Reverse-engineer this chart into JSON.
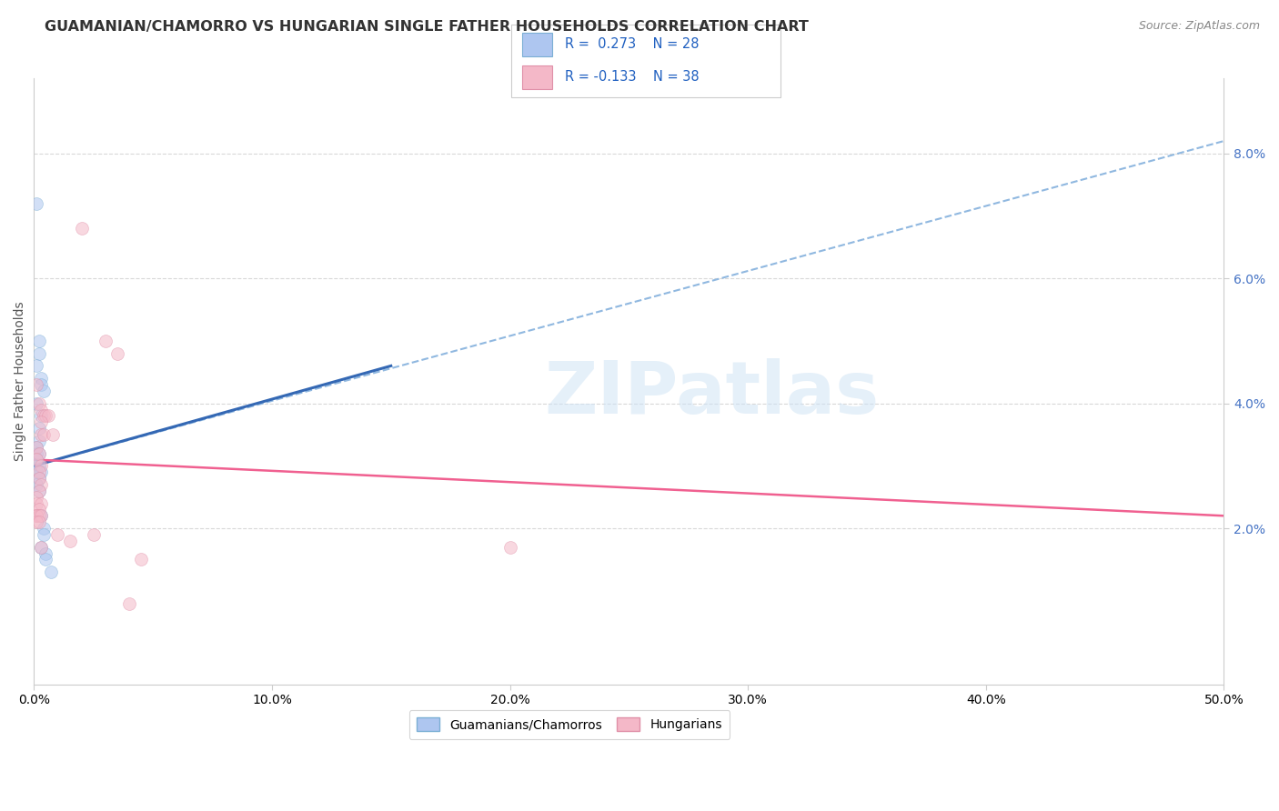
{
  "title": "GUAMANIAN/CHAMORRO VS HUNGARIAN SINGLE FATHER HOUSEHOLDS CORRELATION CHART",
  "source": "Source: ZipAtlas.com",
  "ylabel": "Single Father Households",
  "xlim": [
    0.0,
    0.5
  ],
  "ylim": [
    -0.005,
    0.092
  ],
  "ytick_vals": [
    0.02,
    0.04,
    0.06,
    0.08
  ],
  "xtick_vals": [
    0.0,
    0.1,
    0.2,
    0.3,
    0.4,
    0.5
  ],
  "blue_scatter": [
    [
      0.001,
      0.072
    ],
    [
      0.002,
      0.05
    ],
    [
      0.002,
      0.048
    ],
    [
      0.001,
      0.046
    ],
    [
      0.003,
      0.044
    ],
    [
      0.003,
      0.043
    ],
    [
      0.004,
      0.042
    ],
    [
      0.001,
      0.04
    ],
    [
      0.003,
      0.038
    ],
    [
      0.002,
      0.036
    ],
    [
      0.002,
      0.034
    ],
    [
      0.001,
      0.033
    ],
    [
      0.001,
      0.032
    ],
    [
      0.002,
      0.032
    ],
    [
      0.001,
      0.031
    ],
    [
      0.002,
      0.03
    ],
    [
      0.001,
      0.029
    ],
    [
      0.003,
      0.029
    ],
    [
      0.002,
      0.028
    ],
    [
      0.001,
      0.027
    ],
    [
      0.002,
      0.026
    ],
    [
      0.003,
      0.022
    ],
    [
      0.004,
      0.02
    ],
    [
      0.004,
      0.019
    ],
    [
      0.003,
      0.017
    ],
    [
      0.005,
      0.016
    ],
    [
      0.005,
      0.015
    ],
    [
      0.007,
      0.013
    ]
  ],
  "pink_scatter": [
    [
      0.02,
      0.068
    ],
    [
      0.03,
      0.05
    ],
    [
      0.035,
      0.048
    ],
    [
      0.001,
      0.043
    ],
    [
      0.002,
      0.04
    ],
    [
      0.003,
      0.039
    ],
    [
      0.004,
      0.038
    ],
    [
      0.005,
      0.038
    ],
    [
      0.006,
      0.038
    ],
    [
      0.003,
      0.037
    ],
    [
      0.003,
      0.035
    ],
    [
      0.004,
      0.035
    ],
    [
      0.008,
      0.035
    ],
    [
      0.001,
      0.033
    ],
    [
      0.002,
      0.032
    ],
    [
      0.001,
      0.031
    ],
    [
      0.003,
      0.03
    ],
    [
      0.002,
      0.029
    ],
    [
      0.002,
      0.028
    ],
    [
      0.003,
      0.027
    ],
    [
      0.002,
      0.026
    ],
    [
      0.001,
      0.025
    ],
    [
      0.001,
      0.024
    ],
    [
      0.003,
      0.024
    ],
    [
      0.002,
      0.023
    ],
    [
      0.001,
      0.022
    ],
    [
      0.001,
      0.022
    ],
    [
      0.002,
      0.022
    ],
    [
      0.003,
      0.022
    ],
    [
      0.001,
      0.021
    ],
    [
      0.002,
      0.021
    ],
    [
      0.01,
      0.019
    ],
    [
      0.025,
      0.019
    ],
    [
      0.015,
      0.018
    ],
    [
      0.003,
      0.017
    ],
    [
      0.2,
      0.017
    ],
    [
      0.045,
      0.015
    ],
    [
      0.04,
      0.008
    ]
  ],
  "blue_solid_line": [
    [
      0.0,
      0.03
    ],
    [
      0.15,
      0.046
    ]
  ],
  "blue_dashed_line": [
    [
      0.0,
      0.03
    ],
    [
      0.5,
      0.082
    ]
  ],
  "pink_line": [
    [
      0.0,
      0.031
    ],
    [
      0.5,
      0.022
    ]
  ],
  "watermark_text": "ZIPatlas",
  "scatter_size": 100,
  "scatter_alpha": 0.55,
  "blue_fill": "#aec6f0",
  "blue_edge": "#7bafd4",
  "pink_fill": "#f4b8c8",
  "pink_edge": "#e090a8",
  "blue_line_color": "#3468b4",
  "blue_dash_color": "#90b8e0",
  "pink_line_color": "#f06090",
  "grid_color": "#d8d8d8",
  "title_color": "#333333",
  "source_color": "#888888",
  "ytick_color": "#4472c4",
  "watermark_color": "#d0e4f5",
  "title_fontsize": 11.5,
  "axis_label_fontsize": 10,
  "tick_fontsize": 10
}
